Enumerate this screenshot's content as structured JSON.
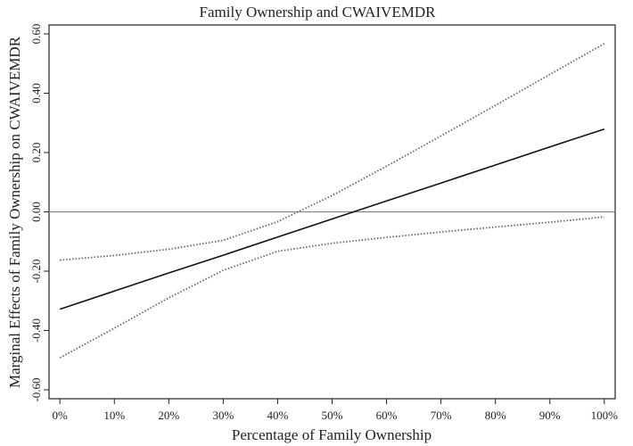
{
  "chart_data": {
    "type": "line",
    "title": "Family Ownership and CWAIVEMDR",
    "xlabel": "Percentage of Family Ownership",
    "ylabel": "Marginal Effects of Family Ownership on CWAIVEMDR",
    "x": [
      0,
      10,
      20,
      30,
      40,
      50,
      60,
      70,
      80,
      90,
      100
    ],
    "x_tick_labels": [
      "0%",
      "10%",
      "20%",
      "30%",
      "40%",
      "50%",
      "60%",
      "70%",
      "80%",
      "90%",
      "100%"
    ],
    "y_ticks": [
      -0.6,
      -0.4,
      -0.2,
      0.0,
      0.2,
      0.4,
      0.6
    ],
    "y_tick_labels": [
      "-0.60",
      "-0.40",
      "-0.20",
      "0.00",
      "0.20",
      "0.40",
      "0.60"
    ],
    "xlim": [
      -2,
      102
    ],
    "ylim": [
      -0.63,
      0.63
    ],
    "grid": false,
    "reference_line": {
      "y": 0.0,
      "color": "#888888"
    },
    "series": [
      {
        "values": [
          -0.328,
          -0.267,
          -0.206,
          -0.146,
          -0.085,
          -0.024,
          0.037,
          0.097,
          0.158,
          0.219,
          0.279
        ],
        "color": "#111111",
        "style": "solid"
      },
      {
        "values": [
          -0.163,
          -0.147,
          -0.126,
          -0.096,
          -0.033,
          0.055,
          0.154,
          0.256,
          0.359,
          0.463,
          0.567
        ],
        "color": "#666666",
        "style": "dotted"
      },
      {
        "values": [
          -0.492,
          -0.392,
          -0.29,
          -0.197,
          -0.133,
          -0.106,
          -0.086,
          -0.068,
          -0.051,
          -0.035,
          -0.017
        ],
        "color": "#666666",
        "style": "dotted"
      }
    ]
  }
}
